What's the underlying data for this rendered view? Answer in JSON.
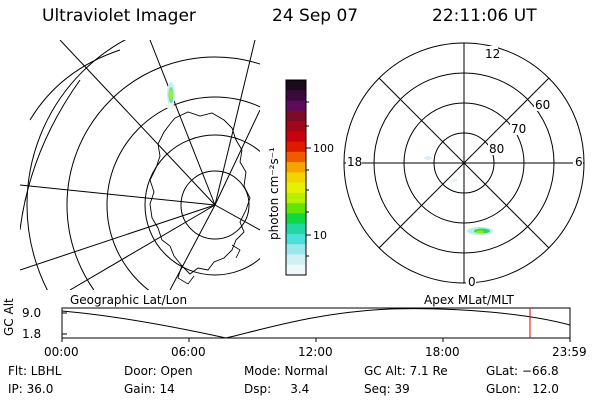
{
  "header": {
    "instrument": "Ultraviolet Imager",
    "date": "24 Sep 07",
    "time": "22:11:06 UT"
  },
  "colorbar": {
    "unit_label": "photon cm⁻²s⁻¹",
    "ticks": [
      "100",
      "10"
    ],
    "colors": [
      "#1a0a1a",
      "#3a0b3a",
      "#5c0c5c",
      "#7a0c2a",
      "#a0081a",
      "#c80010",
      "#e01a00",
      "#f25a00",
      "#f7a400",
      "#f4d400",
      "#e6f000",
      "#b8f000",
      "#60e600",
      "#10d840",
      "#20d8a0",
      "#48e0d8",
      "#9ae8ec",
      "#d0f0f4",
      "#eef8fa"
    ]
  },
  "polar": {
    "mlt_labels": {
      "top": "12",
      "left": "18",
      "right": "6",
      "bottom": "0"
    },
    "lat_labels": [
      "60",
      "70",
      "80"
    ]
  },
  "timeline": {
    "left_title": "Geographic Lat/Lon",
    "right_title": "Apex MLat/MLT",
    "axis_label": "GC Alt",
    "y_ticks": [
      "9.0",
      "1.8"
    ],
    "x_ticks": [
      "00:00",
      "06:00",
      "12:00",
      "18:00",
      "23:59"
    ]
  },
  "status": {
    "row1": {
      "filter": "Flt: LBHL",
      "door": "Door: Open",
      "mode": "Mode: Normal",
      "gc_alt": "GC Alt: 7.1 Re",
      "glat": "GLat: −66.8"
    },
    "row2": {
      "ip": "IP: 36.0",
      "gain": "Gain: 14",
      "dsp": "Dsp:     3.4",
      "seq": "Seq: 39",
      "glon": "GLon:   12.0"
    }
  }
}
